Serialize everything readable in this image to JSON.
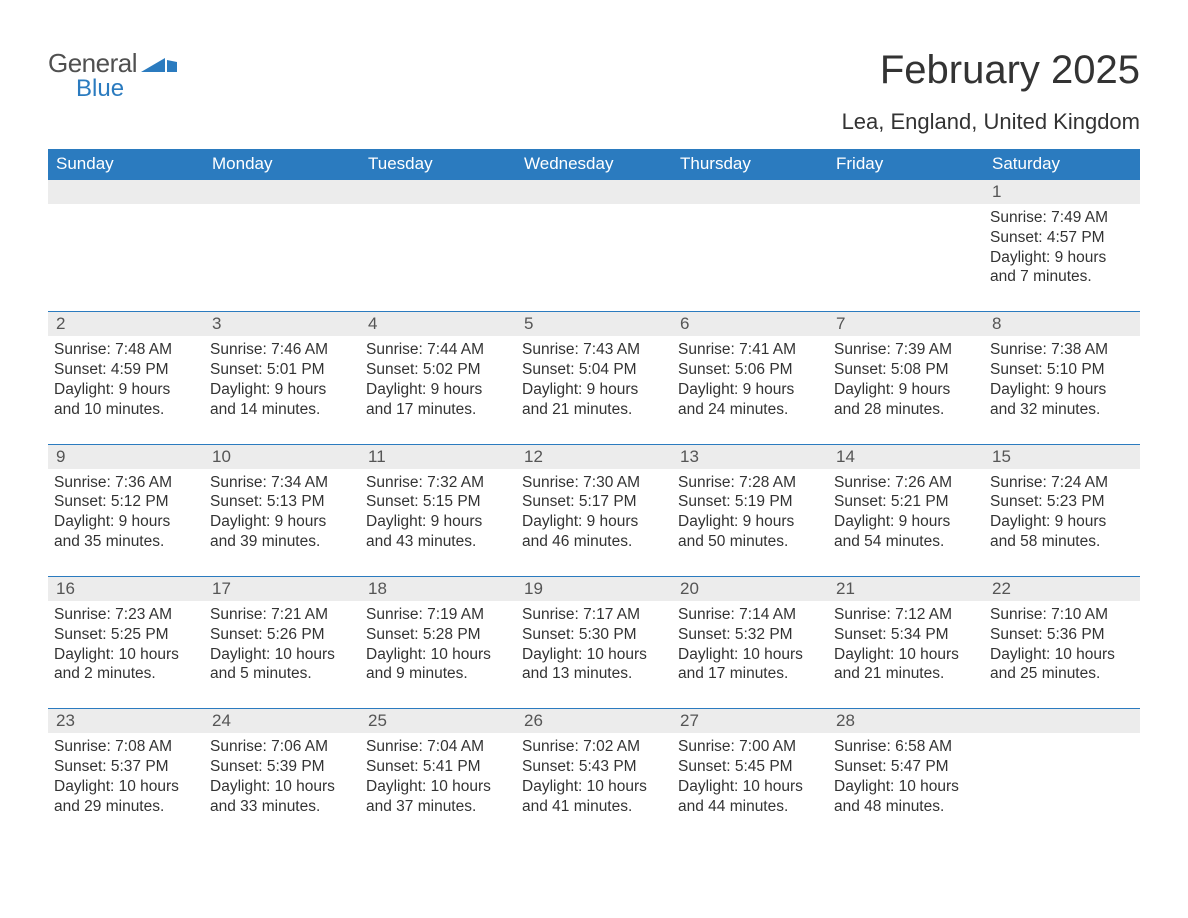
{
  "logo": {
    "text1": "General",
    "text2": "Blue",
    "icon_color": "#2b7bbf"
  },
  "title": "February 2025",
  "subtitle": "Lea, England, United Kingdom",
  "colors": {
    "header_bg": "#2b7bbf",
    "header_text": "#ffffff",
    "daynum_bg": "#ececec",
    "border": "#2b7bbf",
    "body_text": "#333333",
    "background": "#ffffff"
  },
  "typography": {
    "title_fontsize": 40,
    "subtitle_fontsize": 22,
    "weekday_fontsize": 17,
    "daynum_fontsize": 17,
    "dayinfo_fontsize": 15.5
  },
  "weekdays": [
    "Sunday",
    "Monday",
    "Tuesday",
    "Wednesday",
    "Thursday",
    "Friday",
    "Saturday"
  ],
  "weeks": [
    [
      null,
      null,
      null,
      null,
      null,
      null,
      {
        "n": "1",
        "sunrise": "Sunrise: 7:49 AM",
        "sunset": "Sunset: 4:57 PM",
        "daylight": "Daylight: 9 hours and 7 minutes."
      }
    ],
    [
      {
        "n": "2",
        "sunrise": "Sunrise: 7:48 AM",
        "sunset": "Sunset: 4:59 PM",
        "daylight": "Daylight: 9 hours and 10 minutes."
      },
      {
        "n": "3",
        "sunrise": "Sunrise: 7:46 AM",
        "sunset": "Sunset: 5:01 PM",
        "daylight": "Daylight: 9 hours and 14 minutes."
      },
      {
        "n": "4",
        "sunrise": "Sunrise: 7:44 AM",
        "sunset": "Sunset: 5:02 PM",
        "daylight": "Daylight: 9 hours and 17 minutes."
      },
      {
        "n": "5",
        "sunrise": "Sunrise: 7:43 AM",
        "sunset": "Sunset: 5:04 PM",
        "daylight": "Daylight: 9 hours and 21 minutes."
      },
      {
        "n": "6",
        "sunrise": "Sunrise: 7:41 AM",
        "sunset": "Sunset: 5:06 PM",
        "daylight": "Daylight: 9 hours and 24 minutes."
      },
      {
        "n": "7",
        "sunrise": "Sunrise: 7:39 AM",
        "sunset": "Sunset: 5:08 PM",
        "daylight": "Daylight: 9 hours and 28 minutes."
      },
      {
        "n": "8",
        "sunrise": "Sunrise: 7:38 AM",
        "sunset": "Sunset: 5:10 PM",
        "daylight": "Daylight: 9 hours and 32 minutes."
      }
    ],
    [
      {
        "n": "9",
        "sunrise": "Sunrise: 7:36 AM",
        "sunset": "Sunset: 5:12 PM",
        "daylight": "Daylight: 9 hours and 35 minutes."
      },
      {
        "n": "10",
        "sunrise": "Sunrise: 7:34 AM",
        "sunset": "Sunset: 5:13 PM",
        "daylight": "Daylight: 9 hours and 39 minutes."
      },
      {
        "n": "11",
        "sunrise": "Sunrise: 7:32 AM",
        "sunset": "Sunset: 5:15 PM",
        "daylight": "Daylight: 9 hours and 43 minutes."
      },
      {
        "n": "12",
        "sunrise": "Sunrise: 7:30 AM",
        "sunset": "Sunset: 5:17 PM",
        "daylight": "Daylight: 9 hours and 46 minutes."
      },
      {
        "n": "13",
        "sunrise": "Sunrise: 7:28 AM",
        "sunset": "Sunset: 5:19 PM",
        "daylight": "Daylight: 9 hours and 50 minutes."
      },
      {
        "n": "14",
        "sunrise": "Sunrise: 7:26 AM",
        "sunset": "Sunset: 5:21 PM",
        "daylight": "Daylight: 9 hours and 54 minutes."
      },
      {
        "n": "15",
        "sunrise": "Sunrise: 7:24 AM",
        "sunset": "Sunset: 5:23 PM",
        "daylight": "Daylight: 9 hours and 58 minutes."
      }
    ],
    [
      {
        "n": "16",
        "sunrise": "Sunrise: 7:23 AM",
        "sunset": "Sunset: 5:25 PM",
        "daylight": "Daylight: 10 hours and 2 minutes."
      },
      {
        "n": "17",
        "sunrise": "Sunrise: 7:21 AM",
        "sunset": "Sunset: 5:26 PM",
        "daylight": "Daylight: 10 hours and 5 minutes."
      },
      {
        "n": "18",
        "sunrise": "Sunrise: 7:19 AM",
        "sunset": "Sunset: 5:28 PM",
        "daylight": "Daylight: 10 hours and 9 minutes."
      },
      {
        "n": "19",
        "sunrise": "Sunrise: 7:17 AM",
        "sunset": "Sunset: 5:30 PM",
        "daylight": "Daylight: 10 hours and 13 minutes."
      },
      {
        "n": "20",
        "sunrise": "Sunrise: 7:14 AM",
        "sunset": "Sunset: 5:32 PM",
        "daylight": "Daylight: 10 hours and 17 minutes."
      },
      {
        "n": "21",
        "sunrise": "Sunrise: 7:12 AM",
        "sunset": "Sunset: 5:34 PM",
        "daylight": "Daylight: 10 hours and 21 minutes."
      },
      {
        "n": "22",
        "sunrise": "Sunrise: 7:10 AM",
        "sunset": "Sunset: 5:36 PM",
        "daylight": "Daylight: 10 hours and 25 minutes."
      }
    ],
    [
      {
        "n": "23",
        "sunrise": "Sunrise: 7:08 AM",
        "sunset": "Sunset: 5:37 PM",
        "daylight": "Daylight: 10 hours and 29 minutes."
      },
      {
        "n": "24",
        "sunrise": "Sunrise: 7:06 AM",
        "sunset": "Sunset: 5:39 PM",
        "daylight": "Daylight: 10 hours and 33 minutes."
      },
      {
        "n": "25",
        "sunrise": "Sunrise: 7:04 AM",
        "sunset": "Sunset: 5:41 PM",
        "daylight": "Daylight: 10 hours and 37 minutes."
      },
      {
        "n": "26",
        "sunrise": "Sunrise: 7:02 AM",
        "sunset": "Sunset: 5:43 PM",
        "daylight": "Daylight: 10 hours and 41 minutes."
      },
      {
        "n": "27",
        "sunrise": "Sunrise: 7:00 AM",
        "sunset": "Sunset: 5:45 PM",
        "daylight": "Daylight: 10 hours and 44 minutes."
      },
      {
        "n": "28",
        "sunrise": "Sunrise: 6:58 AM",
        "sunset": "Sunset: 5:47 PM",
        "daylight": "Daylight: 10 hours and 48 minutes."
      },
      null
    ]
  ]
}
